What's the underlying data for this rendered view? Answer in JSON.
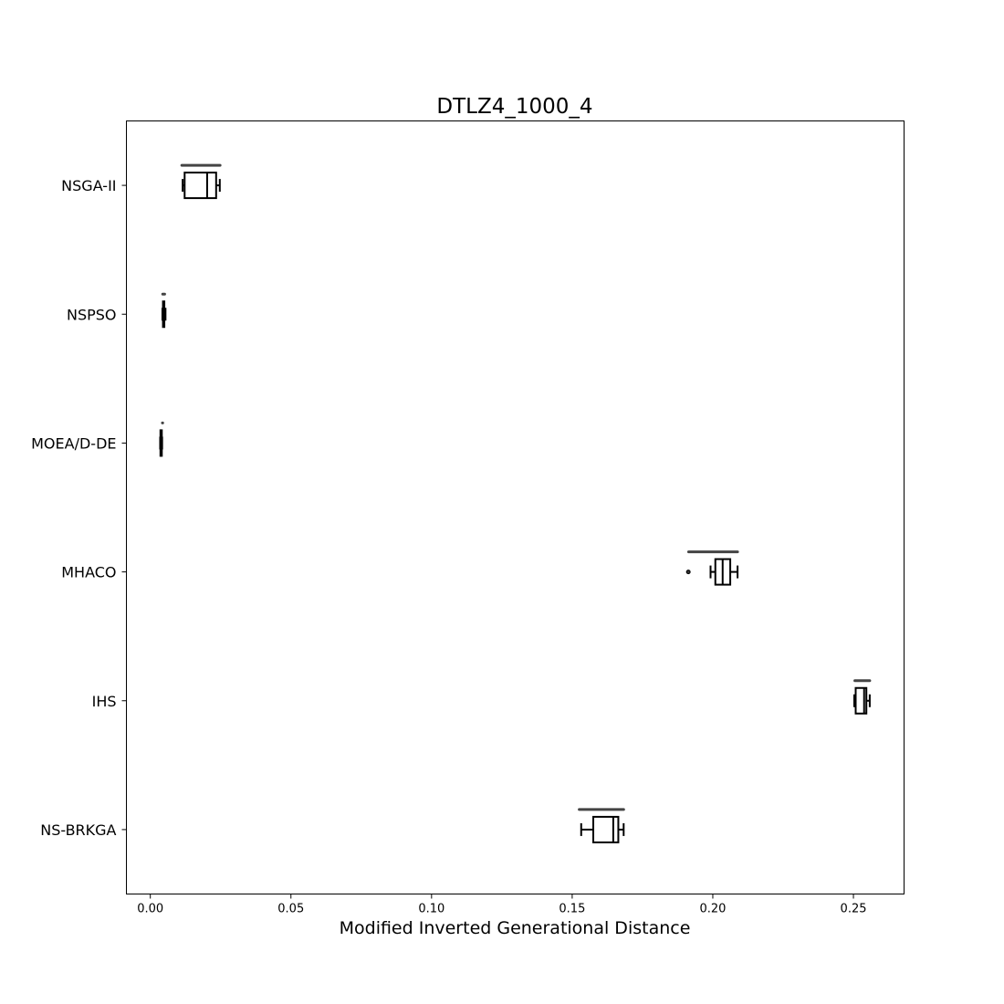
{
  "chart_data": {
    "type": "boxplot",
    "orientation": "horizontal",
    "title": "DTLZ4_1000_4",
    "xlabel": "Modified Inverted Generational Distance",
    "ylabel": "",
    "xlim": [
      -0.0085,
      0.268
    ],
    "xticks": [
      0.0,
      0.05,
      0.1,
      0.15,
      0.2,
      0.25
    ],
    "xtick_labels": [
      "0.00",
      "0.05",
      "0.10",
      "0.15",
      "0.20",
      "0.25"
    ],
    "grid": false,
    "categories": [
      "NSGA-II",
      "NSPSO",
      "MOEA/D-DE",
      "MHACO",
      "IHS",
      "NS-BRKGA"
    ],
    "series": [
      {
        "category": "NSGA-II",
        "whisker_low": 0.0115,
        "q1": 0.0122,
        "median": 0.0202,
        "q3": 0.0234,
        "whisker_high": 0.0247,
        "outliers": [],
        "range_bar": [
          0.0112,
          0.0248
        ]
      },
      {
        "category": "NSPSO",
        "whisker_low": 0.0043,
        "q1": 0.0045,
        "median": 0.0047,
        "q3": 0.0049,
        "whisker_high": 0.0054,
        "outliers": [],
        "range_bar": [
          0.0044,
          0.0051
        ]
      },
      {
        "category": "MOEA/D-DE",
        "whisker_low": 0.0035,
        "q1": 0.0036,
        "median": 0.0037,
        "q3": 0.0039,
        "whisker_high": 0.0042,
        "outliers": [],
        "range_bar": [
          0.0043,
          0.0044
        ]
      },
      {
        "category": "MHACO",
        "whisker_low": 0.1992,
        "q1": 0.2009,
        "median": 0.2035,
        "q3": 0.2062,
        "whisker_high": 0.2088,
        "outliers": [
          0.1913
        ],
        "range_bar": [
          0.1914,
          0.2088
        ]
      },
      {
        "category": "IHS",
        "whisker_low": 0.2503,
        "q1": 0.2508,
        "median": 0.2538,
        "q3": 0.2546,
        "whisker_high": 0.2558,
        "outliers": [],
        "range_bar": [
          0.2505,
          0.2558
        ]
      },
      {
        "category": "NS-BRKGA",
        "whisker_low": 0.1532,
        "q1": 0.1575,
        "median": 0.1646,
        "q3": 0.1664,
        "whisker_high": 0.1683,
        "outliers": [],
        "range_bar": [
          0.1525,
          0.1683
        ]
      }
    ]
  }
}
